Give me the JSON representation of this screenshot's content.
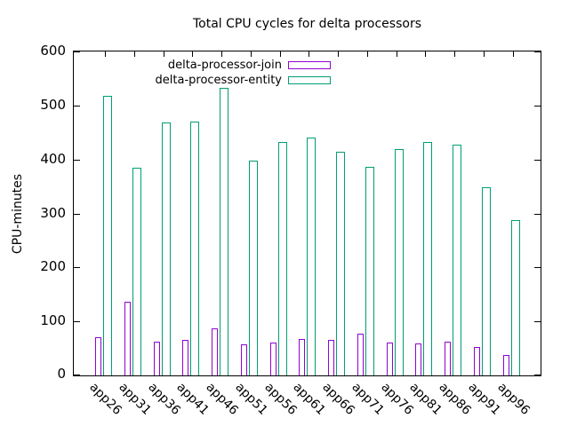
{
  "title": "Total CPU cycles for delta processors",
  "ylabel": "CPU-minutes",
  "chart_data": {
    "type": "bar",
    "title": "Total CPU cycles for delta processors",
    "xlabel": "",
    "ylabel": "CPU-minutes",
    "ylim": [
      0,
      600
    ],
    "yticks": [
      0,
      100,
      200,
      300,
      400,
      500,
      600
    ],
    "grid": false,
    "bar_style": "outline",
    "legend_position": "top-inside",
    "categories": [
      "app26",
      "app31",
      "app36",
      "app41",
      "app46",
      "app51",
      "app56",
      "app61",
      "app66",
      "app71",
      "app76",
      "app81",
      "app86",
      "app91",
      "app96"
    ],
    "series": [
      {
        "name": "delta-processor-join",
        "color": "#9400D3",
        "values": [
          71,
          137,
          63,
          66,
          87,
          58,
          61,
          67,
          66,
          77,
          61,
          59,
          62,
          52,
          38
        ]
      },
      {
        "name": "delta-processor-entity",
        "color": "#009E73",
        "values": [
          518,
          385,
          468,
          470,
          533,
          398,
          432,
          440,
          414,
          386,
          419,
          432,
          427,
          349,
          287
        ]
      }
    ]
  }
}
